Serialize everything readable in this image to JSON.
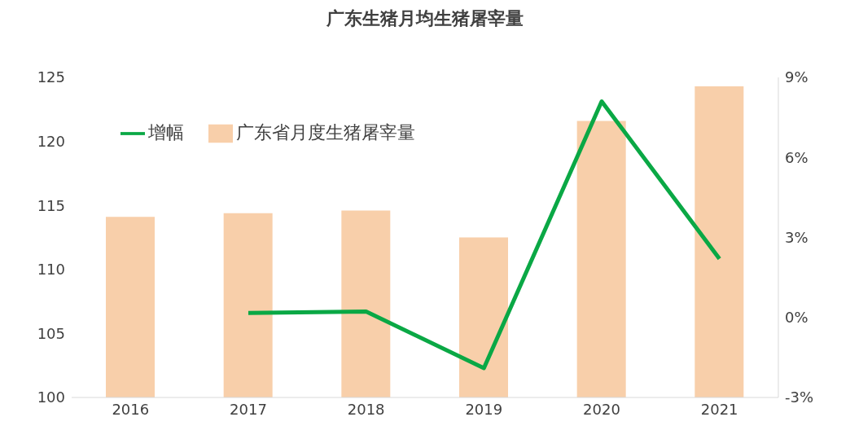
{
  "chart_data": {
    "type": "bar",
    "title": "广东生猪月均生猪屠宰量",
    "categories": [
      "2016",
      "2017",
      "2018",
      "2019",
      "2020",
      "2021"
    ],
    "series": [
      {
        "name": "广东省月度生猪屠宰量",
        "color": "#f8cfaa",
        "values": [
          114.1,
          114.4,
          114.6,
          112.5,
          121.6,
          124.3
        ]
      },
      {
        "name": "增幅",
        "type": "line",
        "axis": "y2",
        "color": "#0aa845",
        "values": [
          null,
          0.17,
          0.22,
          -1.9,
          8.1,
          2.2
        ]
      }
    ],
    "ylim": [
      100,
      125
    ],
    "yticks": [
      100,
      105,
      110,
      115,
      120,
      125
    ],
    "y2lim": [
      -3,
      9
    ],
    "y2ticks": [
      {
        "value": -3,
        "label": "-3%"
      },
      {
        "value": 0,
        "label": "0%"
      },
      {
        "value": 3,
        "label": "3%"
      },
      {
        "value": 6,
        "label": "6%"
      },
      {
        "value": 9,
        "label": "9%"
      }
    ],
    "legend": "top left",
    "marker": "none"
  }
}
